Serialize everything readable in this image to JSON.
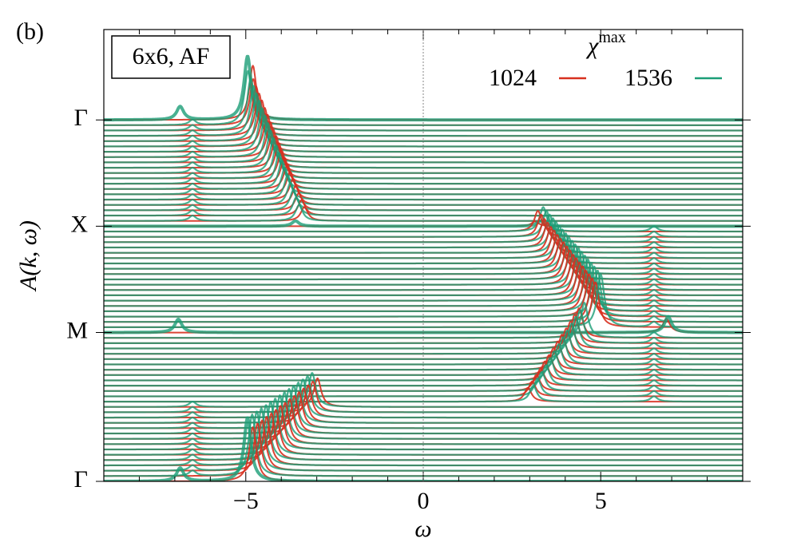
{
  "chart_data": {
    "type": "waterfall",
    "panel_label": "(b)",
    "annotation": "6x6, AF",
    "x_label": "ω",
    "y_label": "A(k, ω)",
    "legend_title": "χ",
    "legend_title_sup": "max",
    "legend": "upper right",
    "xlim": [
      -9,
      9
    ],
    "xticks": [
      {
        "value": -5,
        "label": "−5"
      },
      0,
      5
    ],
    "xminorticks": [
      -8,
      -7,
      -6,
      -4,
      -3,
      -2,
      -1,
      1,
      2,
      3,
      4,
      6,
      7,
      8
    ],
    "ylim": [
      0,
      85
    ],
    "yticks": [
      {
        "value": 0,
        "label": "Γ"
      },
      {
        "value": 28,
        "label": "M"
      },
      {
        "value": 48,
        "label": "X"
      },
      {
        "value": 68,
        "label": "Γ"
      }
    ],
    "zero_line": true,
    "series": [
      {
        "name": "1024",
        "color": "#d7301f",
        "curves": [
          [
            [
              -4.8,
              10.2
            ]
          ],
          [
            [
              -4.67,
              9.9
            ]
          ],
          [
            [
              -4.54,
              9.5
            ]
          ],
          [
            [
              -4.41,
              9.2
            ]
          ],
          [
            [
              -4.28,
              8.8
            ]
          ],
          [
            [
              -4.15,
              8.5
            ]
          ],
          [
            [
              -4.02,
              8.2
            ]
          ],
          [
            [
              -3.89,
              7.8
            ]
          ],
          [
            [
              -3.76,
              7.5
            ]
          ],
          [
            [
              -3.63,
              7.1
            ]
          ],
          [
            [
              -3.5,
              6.8
            ]
          ],
          [
            [
              -3.37,
              6.5
            ]
          ],
          [
            [
              -3.24,
              6.1
            ]
          ],
          [
            [
              -3.11,
              5.8
            ]
          ],
          [
            [
              -2.98,
              5.4
            ]
          ],
          [
            [
              2.95,
              2.6
            ]
          ],
          [
            [
              3.07,
              2.8
            ]
          ],
          [
            [
              3.19,
              3.1
            ]
          ],
          [
            [
              3.31,
              3.3
            ]
          ],
          [
            [
              3.43,
              3.6
            ]
          ],
          [
            [
              3.55,
              3.8
            ]
          ],
          [
            [
              3.67,
              4.1
            ]
          ],
          [
            [
              3.79,
              4.3
            ]
          ],
          [
            [
              3.91,
              4.6
            ]
          ],
          [
            [
              4.03,
              4.8
            ]
          ],
          [
            [
              4.15,
              5.1
            ]
          ],
          [
            [
              4.27,
              5.4
            ]
          ],
          [
            [
              4.39,
              5.6
            ]
          ],
          [
            [
              6.85,
              2.6
            ]
          ],
          [
            [
              4.85,
              8.5
            ]
          ],
          [
            [
              4.76,
              8.2
            ]
          ],
          [
            [
              4.67,
              8.0
            ]
          ],
          [
            [
              4.58,
              7.7
            ]
          ],
          [
            [
              4.49,
              7.5
            ]
          ],
          [
            [
              4.4,
              7.2
            ]
          ],
          [
            [
              4.31,
              7.0
            ]
          ],
          [
            [
              4.22,
              6.7
            ]
          ],
          [
            [
              4.13,
              6.5
            ]
          ],
          [
            [
              4.04,
              6.2
            ]
          ],
          [
            [
              3.95,
              6.0
            ]
          ],
          [
            [
              3.86,
              5.7
            ]
          ],
          [
            [
              3.77,
              5.4
            ]
          ],
          [
            [
              3.68,
              5.2
            ]
          ],
          [
            [
              3.59,
              4.9
            ]
          ],
          [
            [
              3.5,
              4.7
            ]
          ],
          [
            [
              3.41,
              4.4
            ]
          ],
          [
            [
              3.32,
              4.2
            ]
          ],
          [
            [
              3.23,
              3.9
            ]
          ],
          [
            [
              3.15,
              0.9
            ]
          ],
          [
            [
              -3.35,
              2.6
            ]
          ],
          [
            [
              -3.43,
              2.9
            ]
          ],
          [
            [
              -3.51,
              3.2
            ]
          ],
          [
            [
              -3.59,
              3.6
            ]
          ],
          [
            [
              -3.67,
              3.9
            ]
          ],
          [
            [
              -3.75,
              4.3
            ]
          ],
          [
            [
              -3.83,
              4.6
            ]
          ],
          [
            [
              -3.91,
              4.9
            ]
          ],
          [
            [
              -3.99,
              5.3
            ]
          ],
          [
            [
              -4.07,
              5.6
            ]
          ],
          [
            [
              -4.15,
              6.0
            ]
          ],
          [
            [
              -4.23,
              6.3
            ]
          ],
          [
            [
              -4.31,
              6.6
            ]
          ],
          [
            [
              -4.39,
              7.0
            ]
          ],
          [
            [
              -4.47,
              7.3
            ]
          ],
          [
            [
              -4.55,
              7.7
            ]
          ],
          [
            [
              -4.63,
              8.0
            ]
          ],
          [
            [
              -4.71,
              8.3
            ]
          ],
          [
            [
              -4.79,
              8.7
            ]
          ],
          [
            [
              -4.8,
              10.2
            ]
          ]
        ]
      },
      {
        "name": "1536",
        "color": "#1b9e77",
        "curves": [
          [
            [
              -4.95,
              12.0
            ],
            [
              -6.85,
              2.5
            ]
          ],
          [
            [
              -4.82,
              11.6
            ],
            [
              -6.5,
              1
            ]
          ],
          [
            [
              -4.69,
              11.2
            ],
            [
              -6.5,
              1
            ]
          ],
          [
            [
              -4.56,
              10.8
            ],
            [
              -6.5,
              1
            ]
          ],
          [
            [
              -4.43,
              10.4
            ],
            [
              -6.5,
              1
            ]
          ],
          [
            [
              -4.3,
              10.0
            ],
            [
              -6.5,
              1
            ]
          ],
          [
            [
              -4.17,
              9.6
            ],
            [
              -6.5,
              1
            ]
          ],
          [
            [
              -4.04,
              9.2
            ],
            [
              -6.5,
              1
            ]
          ],
          [
            [
              -3.91,
              8.8
            ],
            [
              -6.5,
              1
            ]
          ],
          [
            [
              -3.78,
              8.4
            ],
            [
              -6.5,
              1
            ]
          ],
          [
            [
              -3.65,
              8.0
            ],
            [
              -6.5,
              1
            ]
          ],
          [
            [
              -3.52,
              7.6
            ],
            [
              -6.5,
              1
            ]
          ],
          [
            [
              -3.39,
              7.2
            ],
            [
              -6.5,
              1
            ]
          ],
          [
            [
              -3.26,
              6.8
            ],
            [
              -6.5,
              1
            ]
          ],
          [
            [
              -3.13,
              6.4
            ],
            [
              -6.5,
              1
            ]
          ],
          [
            [
              3.1,
              3.0
            ],
            [
              6.5,
              1
            ]
          ],
          [
            [
              3.22,
              3.3
            ],
            [
              6.5,
              1
            ]
          ],
          [
            [
              3.34,
              3.6
            ],
            [
              6.5,
              1
            ]
          ],
          [
            [
              3.46,
              3.9
            ],
            [
              6.5,
              1
            ]
          ],
          [
            [
              3.58,
              4.2
            ],
            [
              6.5,
              1
            ]
          ],
          [
            [
              3.7,
              4.5
            ],
            [
              6.5,
              1
            ]
          ],
          [
            [
              3.82,
              4.8
            ],
            [
              6.5,
              1
            ]
          ],
          [
            [
              3.94,
              5.1
            ],
            [
              6.5,
              1
            ]
          ],
          [
            [
              4.06,
              5.4
            ],
            [
              6.5,
              1
            ]
          ],
          [
            [
              4.18,
              5.7
            ],
            [
              6.5,
              1
            ]
          ],
          [
            [
              4.3,
              6.0
            ],
            [
              6.5,
              1
            ]
          ],
          [
            [
              4.42,
              6.3
            ],
            [
              6.5,
              1
            ]
          ],
          [
            [
              4.54,
              6.6
            ],
            [
              6.5,
              1
            ]
          ],
          [
            [
              6.9,
              3
            ],
            [
              -6.9,
              2.5
            ]
          ],
          [
            [
              5.0,
              10.0
            ],
            [
              6.5,
              1
            ]
          ],
          [
            [
              4.91,
              9.7
            ],
            [
              6.5,
              1
            ]
          ],
          [
            [
              4.82,
              9.4
            ],
            [
              6.5,
              1
            ]
          ],
          [
            [
              4.73,
              9.1
            ],
            [
              6.5,
              1
            ]
          ],
          [
            [
              4.64,
              8.8
            ],
            [
              6.5,
              1
            ]
          ],
          [
            [
              4.55,
              8.5
            ],
            [
              6.5,
              1
            ]
          ],
          [
            [
              4.46,
              8.2
            ],
            [
              6.5,
              1
            ]
          ],
          [
            [
              4.37,
              7.9
            ],
            [
              6.5,
              1
            ]
          ],
          [
            [
              4.28,
              7.6
            ],
            [
              6.5,
              1
            ]
          ],
          [
            [
              4.19,
              7.3
            ],
            [
              6.5,
              1
            ]
          ],
          [
            [
              4.1,
              7.0
            ],
            [
              6.5,
              1
            ]
          ],
          [
            [
              4.01,
              6.7
            ],
            [
              6.5,
              1
            ]
          ],
          [
            [
              3.92,
              6.4
            ],
            [
              6.5,
              1
            ]
          ],
          [
            [
              3.83,
              6.1
            ],
            [
              6.5,
              1
            ]
          ],
          [
            [
              3.74,
              5.8
            ],
            [
              6.5,
              1
            ]
          ],
          [
            [
              3.65,
              5.5
            ],
            [
              6.5,
              1
            ]
          ],
          [
            [
              3.56,
              5.2
            ],
            [
              6.5,
              1
            ]
          ],
          [
            [
              3.47,
              4.9
            ],
            [
              6.5,
              1
            ]
          ],
          [
            [
              3.38,
              4.6
            ],
            [
              6.5,
              1
            ]
          ],
          [
            [
              3.3,
              1
            ],
            [
              -3.6,
              1
            ]
          ],
          [
            [
              -3.5,
              3.0
            ],
            [
              -6.5,
              1
            ]
          ],
          [
            [
              -3.58,
              3.4
            ],
            [
              -6.5,
              1
            ]
          ],
          [
            [
              -3.66,
              3.8
            ],
            [
              -6.5,
              1
            ]
          ],
          [
            [
              -3.74,
              4.2
            ],
            [
              -6.5,
              1
            ]
          ],
          [
            [
              -3.82,
              4.6
            ],
            [
              -6.5,
              1
            ]
          ],
          [
            [
              -3.9,
              5.0
            ],
            [
              -6.5,
              1
            ]
          ],
          [
            [
              -3.98,
              5.4
            ],
            [
              -6.5,
              1
            ]
          ],
          [
            [
              -4.06,
              5.8
            ],
            [
              -6.5,
              1
            ]
          ],
          [
            [
              -4.14,
              6.2
            ],
            [
              -6.5,
              1
            ]
          ],
          [
            [
              -4.22,
              6.6
            ],
            [
              -6.5,
              1
            ]
          ],
          [
            [
              -4.3,
              7.0
            ],
            [
              -6.5,
              1
            ]
          ],
          [
            [
              -4.38,
              7.4
            ],
            [
              -6.5,
              1
            ]
          ],
          [
            [
              -4.46,
              7.8
            ],
            [
              -6.5,
              1
            ]
          ],
          [
            [
              -4.54,
              8.2
            ],
            [
              -6.5,
              1
            ]
          ],
          [
            [
              -4.62,
              8.6
            ],
            [
              -6.5,
              1
            ]
          ],
          [
            [
              -4.7,
              9.0
            ],
            [
              -6.5,
              1
            ]
          ],
          [
            [
              -4.78,
              9.4
            ],
            [
              -6.5,
              1
            ]
          ],
          [
            [
              -4.86,
              9.8
            ],
            [
              -6.5,
              1
            ]
          ],
          [
            [
              -4.94,
              10.2
            ],
            [
              -6.5,
              1
            ]
          ],
          [
            [
              -4.95,
              12
            ],
            [
              -6.85,
              2.5
            ]
          ]
        ]
      }
    ]
  }
}
